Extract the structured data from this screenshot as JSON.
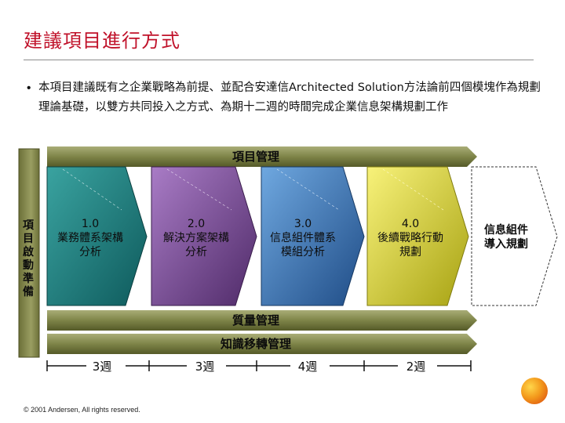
{
  "page": {
    "title": "建議項目進行方式"
  },
  "intro": {
    "bullet": "•",
    "text": "本項目建議既有之企業戰略為前提、並配合安達信Architected Solution方法論前四個模塊作為規劃理論基礎，以雙方共同投入之方式、為期十二週的時間完成企業信息架構規劃工作"
  },
  "bands": {
    "project_management": "項目管理",
    "quality_management": "質量管理",
    "knowledge_transfer": "知識移轉管理"
  },
  "side_label": "項目啟動準備",
  "phases": [
    {
      "line1": "1.0",
      "line2": "業務體系架構",
      "line3": "分析",
      "color": "#1c7c7c"
    },
    {
      "line1": "2.0",
      "line2": "解決方案架構",
      "line3": "分析",
      "color": "#7c4b9a"
    },
    {
      "line1": "3.0",
      "line2": "信息組件體系",
      "line3": "模組分析",
      "color": "#3c78b8"
    },
    {
      "line1": "4.0",
      "line2": "後續戰略行動",
      "line3": "規劃",
      "color": "#d8d23a"
    }
  ],
  "final_phase": {
    "line1": "信息組件",
    "line2": "導入規劃"
  },
  "timeline": [
    "3週",
    "3週",
    "4週",
    "2週"
  ],
  "footer": "© 2001 Andersen, All rights reserved."
}
